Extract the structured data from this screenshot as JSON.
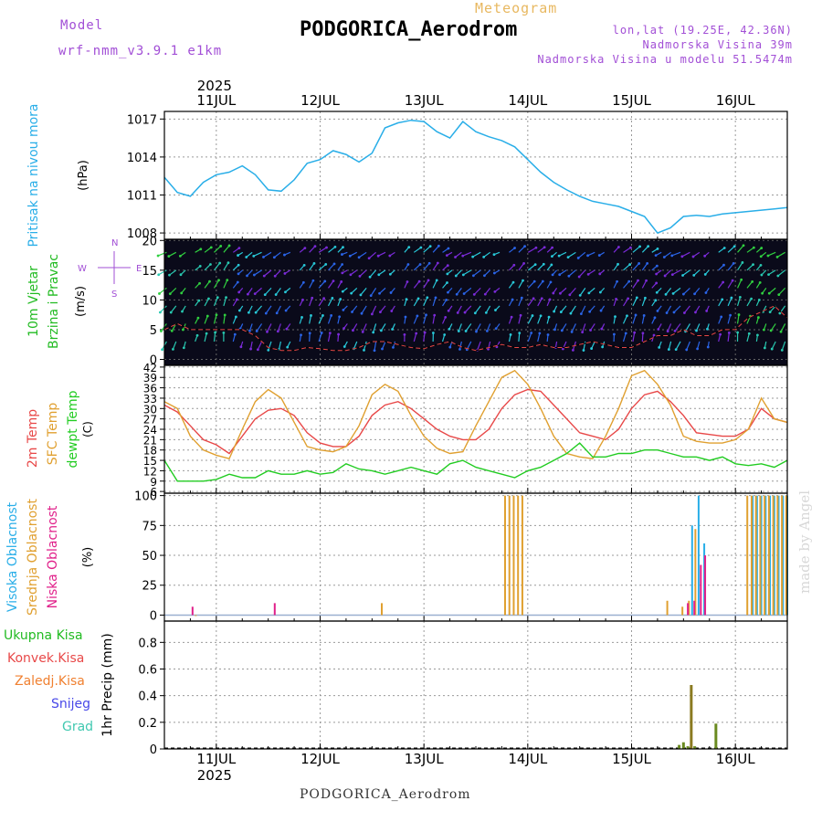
{
  "header": {
    "title": "PODGORICA_Aerodrom",
    "subtitle": "Meteogram",
    "model_label": "Model",
    "model_value": "wrf-nmm_v3.9.1 e1km",
    "lonlat": "lon,lat (19.25E, 42.36N)",
    "altitude": "Nadmorska Visina 39m",
    "model_altitude": "Nadmorska Visina u modelu 51.5474m"
  },
  "footer": {
    "location": "PODGORICA_Aerodrom",
    "watermark": "made by Angel"
  },
  "colors": {
    "pressure": "#29aee8",
    "temp2m": "#e84848",
    "sfc": "#e0a030",
    "dewpt": "#22cc22",
    "high_cloud": "#29aee8",
    "mid_cloud": "#e0a030",
    "low_cloud": "#e0208a",
    "precip_total": "#22bb22",
    "precip_conv": "#e84848",
    "precip_frz": "#f08030",
    "snow": "#4848e8",
    "graupel": "#40c8b0",
    "wind_label": "#22bb22",
    "wind_rose": "#a24fd6"
  },
  "chart_data": [
    {
      "type": "line",
      "name": "pressure",
      "ylabel": "(hPa)",
      "side_labels": [
        "Pritisak na nivou mora"
      ],
      "x_hours": [
        0,
        3,
        6,
        9,
        12,
        15,
        18,
        21,
        24,
        27,
        30,
        33,
        36,
        39,
        42,
        45,
        48,
        51,
        54,
        57,
        60,
        63,
        66,
        69,
        72,
        75,
        78,
        81,
        84,
        87,
        90,
        93,
        96,
        99,
        102,
        105,
        108,
        111,
        114,
        117,
        120,
        123,
        126,
        129,
        132,
        135,
        138,
        141,
        144
      ],
      "series": [
        {
          "name": "pressure",
          "values": [
            1012.4,
            1011.2,
            1010.9,
            1012.0,
            1012.6,
            1012.8,
            1013.3,
            1012.6,
            1011.4,
            1011.3,
            1012.2,
            1013.5,
            1013.8,
            1014.5,
            1014.2,
            1013.6,
            1014.3,
            1016.3,
            1016.7,
            1016.9,
            1016.8,
            1016.0,
            1015.5,
            1016.8,
            1016.0,
            1015.6,
            1015.3,
            1014.8,
            1013.8,
            1012.8,
            1012.0,
            1011.4,
            1010.9,
            1010.5,
            1010.3,
            1010.1,
            1009.7,
            1009.3,
            1008.0,
            1008.4,
            1009.3,
            1009.4,
            1009.3,
            1009.5,
            1009.6,
            1009.7,
            1009.8,
            1009.9,
            1010.0
          ]
        }
      ],
      "y_ticks": [
        1008,
        1011,
        1014,
        1017
      ],
      "ylim": [
        1007.5,
        1017.6
      ]
    },
    {
      "type": "line",
      "name": "wind",
      "ylabel": "(m/s)",
      "side_labels": [
        "10m Vjetar",
        "Brzina i Pravac"
      ],
      "compass": {
        "north": "N",
        "south": "S",
        "west": "W",
        "east": "E"
      },
      "x_hours": [
        0,
        3,
        6,
        9,
        12,
        15,
        18,
        21,
        24,
        27,
        30,
        33,
        36,
        39,
        42,
        45,
        48,
        51,
        54,
        57,
        60,
        63,
        66,
        69,
        72,
        75,
        78,
        81,
        84,
        87,
        90,
        93,
        96,
        99,
        102,
        105,
        108,
        111,
        114,
        117,
        120,
        123,
        126,
        129,
        132,
        135,
        138,
        141,
        144
      ],
      "series": [
        {
          "name": "speed",
          "values": [
            5,
            6,
            5,
            5,
            5,
            5,
            5,
            4,
            2,
            1.5,
            1.5,
            2,
            1.8,
            1.5,
            1.5,
            2,
            3,
            3,
            2.5,
            2,
            1.8,
            2.5,
            3,
            2,
            1.5,
            2,
            2.5,
            2,
            2,
            2.5,
            2,
            2,
            2.5,
            3,
            2.5,
            2,
            2,
            3,
            4,
            4,
            5,
            4,
            4,
            5,
            5,
            7,
            8,
            9,
            7
          ]
        }
      ],
      "y_ticks": [
        0,
        5,
        10,
        15,
        20
      ],
      "ylim": [
        -1,
        20.2
      ]
    },
    {
      "type": "line",
      "name": "temperature",
      "ylabel": "(C)",
      "side_labels": [
        "2m Temp",
        "SFC Temp",
        "dewpt Temp"
      ],
      "x_hours": [
        0,
        3,
        6,
        9,
        12,
        15,
        18,
        21,
        24,
        27,
        30,
        33,
        36,
        39,
        42,
        45,
        48,
        51,
        54,
        57,
        60,
        63,
        66,
        69,
        72,
        75,
        78,
        81,
        84,
        87,
        90,
        93,
        96,
        99,
        102,
        105,
        108,
        111,
        114,
        117,
        120,
        123,
        126,
        129,
        132,
        135,
        138,
        141,
        144
      ],
      "series": [
        {
          "name": "2m Temp",
          "values": [
            31,
            29,
            25,
            21,
            19.5,
            17,
            22,
            27,
            29.5,
            30,
            28,
            23,
            20,
            19,
            19,
            22,
            28,
            31,
            32,
            30,
            27,
            24,
            22,
            21,
            21,
            24,
            30,
            34,
            35.5,
            35,
            31,
            27,
            23,
            22,
            21,
            24,
            30,
            34,
            35,
            32,
            28,
            23,
            22.5,
            22,
            22,
            24,
            30,
            27,
            26
          ]
        },
        {
          "name": "SFC Temp",
          "values": [
            32,
            30,
            22,
            18,
            16.5,
            15.5,
            24,
            32,
            35.5,
            33,
            26,
            19,
            18,
            17.5,
            19,
            25,
            34,
            37,
            35,
            28,
            22,
            18.5,
            17,
            17.5,
            25,
            32,
            39,
            41,
            37,
            30,
            22,
            17,
            16,
            15.5,
            22,
            30,
            39.5,
            41,
            37,
            31,
            22,
            20.5,
            20,
            20,
            21,
            24,
            33,
            27,
            26
          ]
        },
        {
          "name": "dewpt Temp",
          "values": [
            15,
            9,
            9,
            9,
            9.5,
            11,
            10,
            10,
            12,
            11,
            11,
            12,
            11,
            11.5,
            14,
            12.5,
            12,
            11,
            12,
            13,
            12,
            11,
            14,
            15,
            13,
            12,
            11,
            10,
            12,
            13,
            15,
            17,
            20,
            16,
            16,
            17,
            17,
            18,
            18,
            17,
            16,
            16,
            15,
            16,
            14,
            13.5,
            14,
            13,
            15
          ]
        }
      ],
      "y_ticks": [
        6,
        9,
        12,
        15,
        18,
        21,
        24,
        27,
        30,
        33,
        36,
        39,
        42
      ],
      "ylim": [
        5.5,
        42.5
      ]
    },
    {
      "type": "bar",
      "name": "cloud",
      "ylabel": "(%)",
      "side_labels": [
        "Visoka Oblacnost",
        "Srednja Oblacnost",
        "Niska Oblacnost"
      ],
      "series": [
        {
          "name": "Visoka",
          "x_hours": [
            122,
            123.5,
            124.8,
            136,
            137,
            138,
            139,
            140,
            141,
            142,
            143,
            144
          ],
          "values": [
            75,
            100,
            60,
            100,
            100,
            100,
            100,
            100,
            100,
            100,
            100,
            100
          ]
        },
        {
          "name": "Srednja",
          "x_hours": [
            7,
            50,
            78.5,
            79.5,
            80.5,
            81.5,
            82.5,
            116,
            119.5,
            121,
            122.5,
            134.5,
            135.5,
            136.5,
            137.5,
            138.5,
            139.5,
            140.5,
            141.5,
            142.5,
            143.5
          ],
          "values": [
            0,
            10,
            100,
            100,
            100,
            100,
            100,
            12,
            7,
            12,
            72,
            100,
            100,
            100,
            100,
            100,
            100,
            100,
            100,
            100,
            100
          ]
        },
        {
          "name": "Niska",
          "x_hours": [
            6,
            25,
            120.5,
            122,
            123.5,
            124.5
          ],
          "values": [
            7,
            10,
            10,
            12,
            42,
            50
          ]
        }
      ],
      "y_ticks": [
        0,
        25,
        50,
        75,
        100
      ],
      "ylim": [
        -5,
        102
      ]
    },
    {
      "type": "bar",
      "name": "precip",
      "ylabel": "1hr Precip (mm)",
      "side_labels": [
        "Ukupna Kisa",
        "Konvek.Kisa",
        "Zaledj.Kisa",
        "Snijeg",
        "Grad"
      ],
      "series": [
        {
          "name": "total",
          "x_hours": [
            119,
            120,
            121,
            121.8,
            122.6,
            127.5
          ],
          "values": [
            0.03,
            0.05,
            0.02,
            0.48,
            0.02,
            0.19
          ]
        }
      ],
      "y_ticks": [
        0,
        0.2,
        0.4,
        0.6,
        0.8
      ],
      "ylim": [
        0,
        0.96
      ]
    }
  ],
  "x_axis": {
    "ticks": [
      {
        "h": 12,
        "label": "11JUL"
      },
      {
        "h": 36,
        "label": "12JUL"
      },
      {
        "h": 60,
        "label": "13JUL"
      },
      {
        "h": 84,
        "label": "14JUL"
      },
      {
        "h": 108,
        "label": "15JUL"
      },
      {
        "h": 132,
        "label": "16JUL"
      }
    ],
    "year": "2025",
    "range_hours": [
      0,
      144
    ]
  }
}
